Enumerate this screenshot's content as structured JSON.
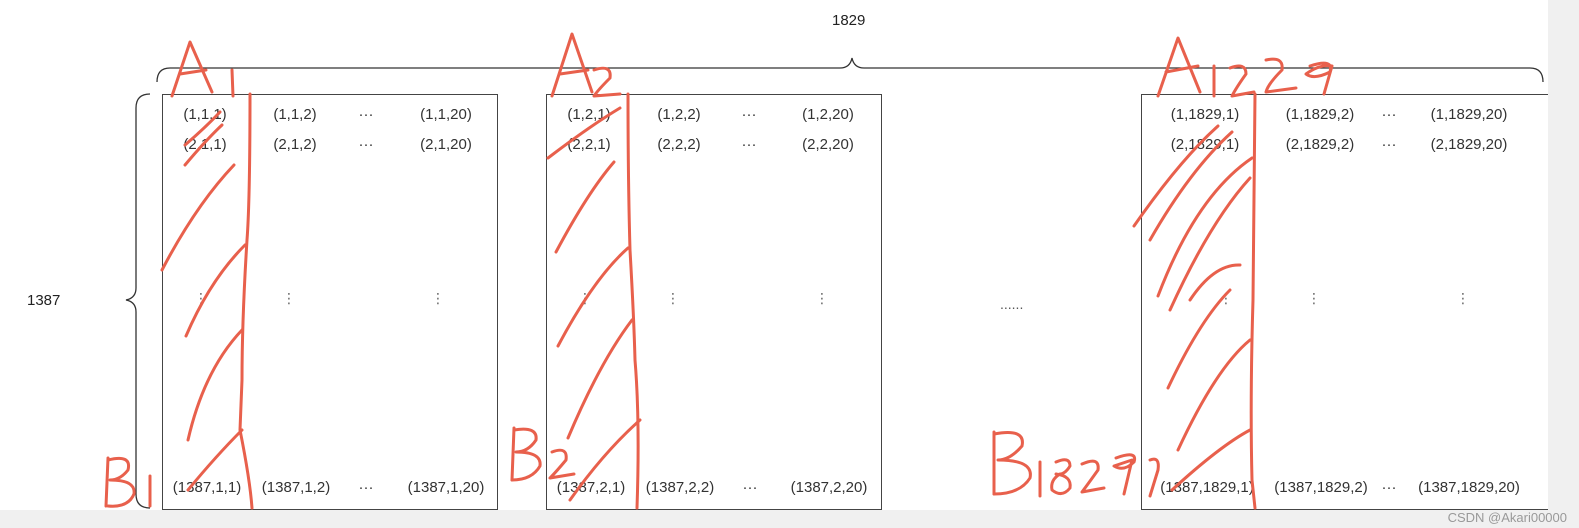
{
  "width_label": "1829",
  "height_label": "1387",
  "between_label": "......",
  "matrices": [
    {
      "cells": {
        "r1": [
          "(1,1,1)",
          "(1,1,2)",
          "···",
          "(1,1,20)"
        ],
        "r2": [
          "(2,1,1)",
          "(2,1,2)",
          "···",
          "(2,1,20)"
        ],
        "rn": [
          "(1387,1,1)",
          "(1387,1,2)",
          "···",
          "(1387,1,20)"
        ]
      }
    },
    {
      "cells": {
        "r1": [
          "(1,2,1)",
          "(1,2,2)",
          "···",
          "(1,2,20)"
        ],
        "r2": [
          "(2,2,1)",
          "(2,2,2)",
          "···",
          "(2,2,20)"
        ],
        "rn": [
          "(1387,2,1)",
          "(1387,2,2)",
          "···",
          "(1387,2,20)"
        ]
      }
    },
    {
      "cells": {
        "r1": [
          "(1,1829,1)",
          "(1,1829,2)",
          "···",
          "(1,1829,20)"
        ],
        "r2": [
          "(2,1829,1)",
          "(2,1829,2)",
          "···",
          "(2,1829,20)"
        ],
        "rn": [
          "(1387,1829,1)",
          "(1387,1829,2)",
          "···",
          "(1387,1829,20)"
        ]
      }
    }
  ],
  "vdots": "⋮",
  "annotations": {
    "a1": "A1",
    "a2": "A2",
    "a1829": "A1829",
    "b1": "B1",
    "b2": "B2",
    "b1829": "B1829"
  },
  "annotation_color": "#e8604c",
  "watermark": "CSDN @Akari00000"
}
